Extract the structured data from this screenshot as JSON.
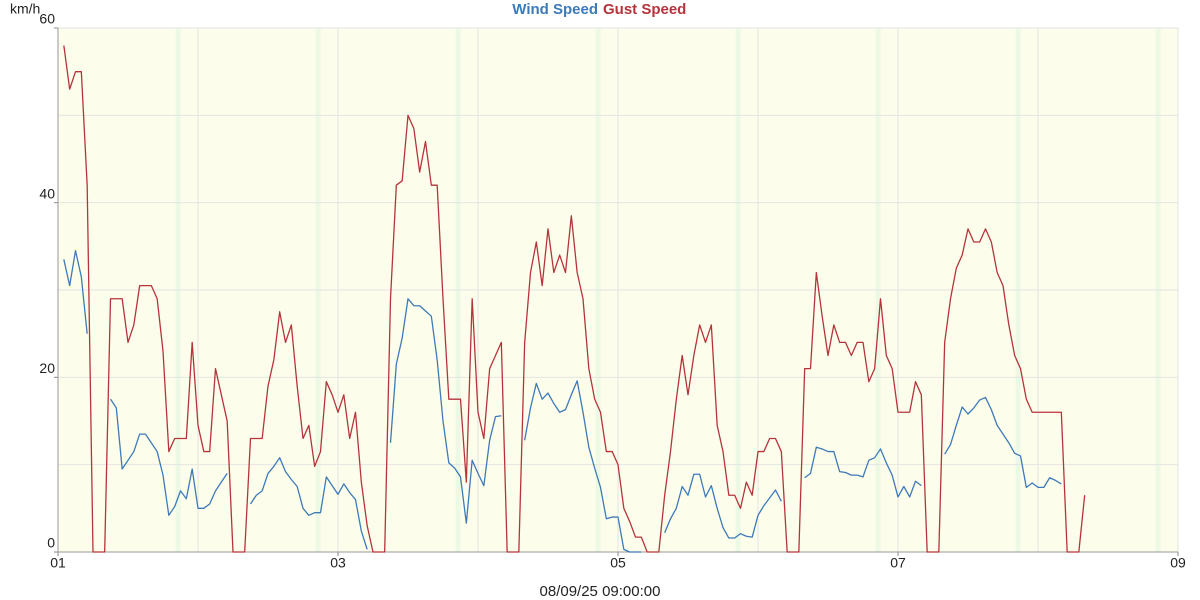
{
  "chart_data": {
    "type": "line",
    "y_label": "km/h",
    "x_label": "08/09/25 09:00:00",
    "xlim": [
      0,
      192
    ],
    "xticks": [
      {
        "value": 0,
        "label": "01"
      },
      {
        "value": 48,
        "label": "03"
      },
      {
        "value": 96,
        "label": "05"
      },
      {
        "value": 144,
        "label": "07"
      },
      {
        "value": 192,
        "label": "09"
      }
    ],
    "x_minor_grid": [
      24,
      72,
      120,
      168
    ],
    "ylim": [
      0,
      60
    ],
    "yticks": [
      0,
      20,
      40,
      60
    ],
    "y_minor_grid": [
      10,
      30,
      50
    ],
    "grid": true,
    "legend": "top",
    "x": [
      1,
      2,
      3,
      4,
      5,
      6,
      7,
      8,
      9,
      10,
      11,
      12,
      13,
      14,
      15,
      16,
      17,
      18,
      19,
      20,
      21,
      22,
      23,
      24,
      25,
      26,
      27,
      28,
      29,
      30,
      31,
      32,
      33,
      34,
      35,
      36,
      37,
      38,
      39,
      40,
      41,
      42,
      43,
      44,
      45,
      46,
      47,
      48,
      49,
      50,
      51,
      52,
      53,
      54,
      55,
      56,
      57,
      58,
      59,
      60,
      61,
      62,
      63,
      64,
      65,
      66,
      67,
      68,
      69,
      70,
      71,
      72,
      73,
      74,
      75,
      76,
      77,
      78,
      79,
      80,
      81,
      82,
      83,
      84,
      85,
      86,
      87,
      88,
      89,
      90,
      91,
      92,
      93,
      94,
      95,
      96,
      97,
      98,
      99,
      100,
      101,
      102,
      103,
      104,
      105,
      106,
      107,
      108,
      109,
      110,
      111,
      112,
      113,
      114,
      115,
      116,
      117,
      118,
      119,
      120,
      121,
      122,
      123,
      124,
      125,
      126,
      127,
      128,
      129,
      130,
      131,
      132,
      133,
      134,
      135,
      136,
      137,
      138,
      139,
      140,
      141,
      142,
      143,
      144,
      145,
      146,
      147,
      148,
      149,
      150,
      151,
      152,
      153,
      154,
      155,
      156,
      157,
      158,
      159,
      160,
      161,
      162,
      163,
      164,
      165,
      166,
      167,
      168,
      169,
      170,
      171,
      172,
      173,
      174,
      175,
      176
    ],
    "series": [
      {
        "name": "Wind Speed",
        "color": "#3d7ab8",
        "values": [
          33.5,
          30.5,
          34.5,
          31.5,
          25,
          null,
          null,
          null,
          17.5,
          16.5,
          9.5,
          10.5,
          11.5,
          13.5,
          13.5,
          12.5,
          11.5,
          8.8,
          4.2,
          5.2,
          7,
          6.1,
          9.5,
          5,
          5,
          5.5,
          7,
          8,
          9,
          null,
          null,
          null,
          5.5,
          6.5,
          7,
          9,
          9.8,
          10.8,
          9.2,
          8.3,
          7.5,
          5,
          4.2,
          4.5,
          4.5,
          8.6,
          7.6,
          6.6,
          7.8,
          6.8,
          6,
          2.4,
          0.3,
          null,
          null,
          null,
          12.5,
          21.5,
          24.5,
          29,
          28.2,
          28.2,
          27.6,
          27,
          22,
          15,
          10.2,
          9.6,
          8.6,
          3.3,
          10.5,
          9,
          7.6,
          12.8,
          15.5,
          15.6,
          null,
          null,
          null,
          12.8,
          16.5,
          19.3,
          17.5,
          18.2,
          17,
          16,
          16.3,
          18,
          19.6,
          16,
          12,
          9.6,
          7.4,
          3.8,
          4,
          4,
          0.3,
          0,
          0,
          0,
          null,
          null,
          null,
          2.2,
          3.8,
          5,
          7.5,
          6.5,
          8.9,
          8.9,
          6.3,
          7.6,
          5,
          2.8,
          1.6,
          1.6,
          2.1,
          1.8,
          1.7,
          4.2,
          5.3,
          6.2,
          7.1,
          5.8,
          null,
          null,
          null,
          8.5,
          9,
          12,
          11.8,
          11.5,
          11.5,
          9.2,
          9.1,
          8.8,
          8.8,
          8.6,
          10.5,
          10.8,
          11.8,
          10.2,
          8.8,
          6.3,
          7.5,
          6.3,
          8.1,
          7.6,
          null,
          null,
          null,
          11.2,
          12.3,
          14.5,
          16.6,
          15.8,
          16.5,
          17.4,
          17.7,
          16.3,
          14.5,
          13.5,
          12.5,
          11.3,
          11,
          7.4,
          7.9,
          7.4,
          7.4,
          8.5,
          8.2,
          7.8,
          null,
          null,
          null,
          null
        ]
      },
      {
        "name": "Gust Speed",
        "color": "#b5343c",
        "values": [
          58,
          53,
          55,
          55,
          42,
          0,
          0,
          0,
          29,
          29,
          29,
          24,
          26,
          30.5,
          30.5,
          30.5,
          29,
          23,
          11.5,
          13,
          13,
          13,
          24,
          14.5,
          11.5,
          11.5,
          21,
          18,
          15,
          0,
          0,
          0,
          13,
          13,
          13,
          19,
          22,
          27.5,
          24,
          26,
          19,
          13,
          14.5,
          9.8,
          11.5,
          19.5,
          18,
          16,
          18,
          13,
          16,
          8,
          3,
          0,
          0,
          0,
          29,
          42,
          42.5,
          50,
          48.5,
          43.5,
          47,
          42,
          42,
          29,
          17.5,
          17.5,
          17.5,
          8,
          29,
          16,
          13,
          21,
          22.5,
          24,
          0,
          0,
          0,
          24,
          32,
          35.5,
          30.5,
          37,
          32,
          34,
          32,
          38.5,
          32,
          29,
          21,
          17.5,
          16,
          11.5,
          11.5,
          10,
          5,
          3.5,
          1.7,
          1.7,
          0,
          0,
          0,
          6.5,
          11.5,
          17.5,
          22.5,
          18,
          22.5,
          26,
          24,
          26,
          14.5,
          11.5,
          6.5,
          6.5,
          5,
          8,
          6.5,
          11.5,
          11.5,
          13,
          13,
          11.5,
          0,
          0,
          0,
          21,
          21,
          32,
          27,
          22.5,
          26,
          24,
          24,
          22.5,
          24,
          24,
          19.5,
          21,
          29,
          22.5,
          21,
          16,
          16,
          16,
          19.5,
          18,
          0,
          0,
          0,
          24,
          29,
          32.5,
          34,
          37,
          35.5,
          35.5,
          37,
          35.5,
          32,
          30.5,
          26,
          22.5,
          21,
          17.5,
          16,
          16,
          16,
          16,
          16,
          16,
          0,
          0,
          0,
          6.5
        ]
      }
    ]
  }
}
